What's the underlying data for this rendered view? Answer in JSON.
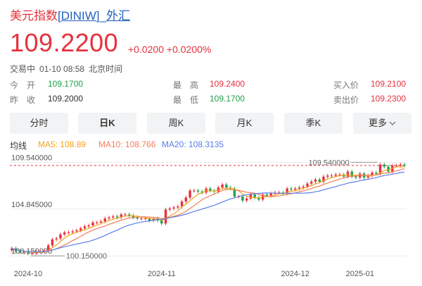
{
  "header": {
    "name": "美元指数",
    "code": "[DINIW]",
    "sep": "_",
    "market": "外汇"
  },
  "quote": {
    "price": "109.2200",
    "change": "+0.0200",
    "change_pct": "+0.0200%",
    "status": "交易中",
    "datetime": "01-10 08:58",
    "timezone": "北京时间"
  },
  "stats": {
    "open_label": "今　开",
    "open": "109.1700",
    "prev_label": "昨　收",
    "prev": "109.2000",
    "high_label": "最　高",
    "high": "109.2400",
    "low_label": "最　低",
    "low": "109.1700",
    "bid_label": "买入价",
    "bid": "109.2100",
    "ask_label": "卖出价",
    "ask": "109.2300"
  },
  "tabs": [
    "分时",
    "日K",
    "周K",
    "月K",
    "季K",
    "更多"
  ],
  "active_tab": "日K",
  "ma": {
    "label": "均线",
    "ma5": "MA5: 108.89",
    "ma10": "MA10: 108.766",
    "ma20": "MA20: 108.3135"
  },
  "colors": {
    "up": "#e5323d",
    "down": "#22a04a",
    "ma5": "#f7a21b",
    "ma10": "#f07e5b",
    "ma20": "#5b7ee5"
  },
  "chart_data": {
    "type": "candlestick",
    "y_labels": [
      "109.540000",
      "104.845000",
      "100.150000"
    ],
    "annotations": {
      "max_label": "109.540000",
      "min_label": "100.150000"
    },
    "x_labels": [
      "2024-10",
      "2024-11",
      "2024-12",
      "2025-01"
    ],
    "ylim": [
      99.6,
      110.2
    ],
    "closes": [
      100.9,
      100.6,
      100.5,
      100.5,
      100.4,
      100.4,
      100.6,
      100.6,
      100.7,
      101.2,
      101.8,
      101.9,
      102.3,
      102.5,
      102.5,
      102.6,
      102.7,
      102.9,
      103.1,
      103.2,
      103.5,
      103.5,
      103.6,
      103.9,
      104.0,
      104.1,
      104.0,
      104.3,
      104.3,
      104.2,
      104.0,
      103.9,
      103.9,
      103.9,
      103.7,
      103.9,
      103.7,
      103.4,
      104.8,
      104.9,
      105.0,
      105.1,
      105.6,
      106.0,
      106.7,
      106.7,
      106.6,
      106.5,
      106.9,
      106.7,
      106.6,
      107.0,
      107.3,
      107.0,
      106.9,
      106.1,
      106.1,
      105.7,
      105.9,
      106.3,
      106.0,
      105.8,
      106.3,
      106.2,
      106.4,
      106.5,
      106.5,
      106.4,
      106.9,
      106.8,
      106.9,
      107.0,
      107.1,
      107.4,
      107.6,
      107.8,
      107.6,
      108.1,
      108.2,
      108.2,
      108.3,
      108.3,
      108.1,
      108.6,
      108.1,
      108.0,
      108.4,
      108.0,
      108.2,
      108.5,
      108.4,
      109.3,
      109.1,
      108.6,
      109.2,
      109.2,
      109.3,
      109.2
    ],
    "period_note": "daily candles"
  }
}
